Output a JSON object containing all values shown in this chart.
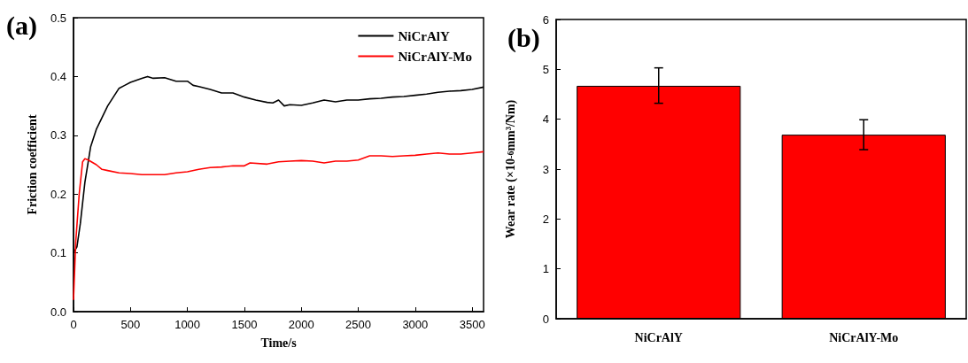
{
  "chart_data": [
    {
      "type": "line",
      "title": "(a)",
      "xlabel": "Time/s",
      "ylabel": "Friction coefficient",
      "xlim": [
        0,
        3600
      ],
      "xticks": [
        0,
        500,
        1000,
        1500,
        2000,
        2500,
        3000,
        3500
      ],
      "ylim": [
        0,
        0.5
      ],
      "yticks": [
        {
          "value": 0,
          "label": "0.0"
        },
        0.1,
        0.2,
        0.3,
        0.4,
        0.5
      ],
      "grid": false,
      "legend": "top right",
      "marker": "none",
      "line_style": "solid",
      "series": [
        {
          "name": "NiCrAlY",
          "color": "#000000",
          "x": [
            0,
            30,
            60,
            100,
            150,
            200,
            250,
            300,
            350,
            400,
            450,
            500,
            600,
            650,
            700,
            800,
            900,
            1000,
            1050,
            1100,
            1200,
            1300,
            1400,
            1500,
            1600,
            1700,
            1750,
            1800,
            1850,
            1900,
            2000,
            2100,
            2200,
            2300,
            2400,
            2500,
            2600,
            2700,
            2800,
            2900,
            3000,
            3100,
            3200,
            3300,
            3400,
            3500,
            3600
          ],
          "values": [
            0.1,
            0.11,
            0.15,
            0.22,
            0.28,
            0.31,
            0.33,
            0.35,
            0.365,
            0.38,
            0.385,
            0.39,
            0.397,
            0.4,
            0.397,
            0.398,
            0.392,
            0.392,
            0.385,
            0.383,
            0.378,
            0.372,
            0.372,
            0.365,
            0.36,
            0.356,
            0.355,
            0.36,
            0.35,
            0.352,
            0.351,
            0.355,
            0.36,
            0.357,
            0.36,
            0.36,
            0.362,
            0.363,
            0.365,
            0.366,
            0.368,
            0.37,
            0.373,
            0.375,
            0.376,
            0.378,
            0.382
          ]
        },
        {
          "name": "NiCrAlY-Mo",
          "color": "#ff0000",
          "x": [
            0,
            20,
            50,
            80,
            100,
            130,
            200,
            250,
            300,
            400,
            500,
            600,
            700,
            800,
            900,
            1000,
            1100,
            1200,
            1300,
            1400,
            1500,
            1550,
            1700,
            1800,
            1900,
            2000,
            2100,
            2200,
            2300,
            2400,
            2500,
            2600,
            2700,
            2800,
            2900,
            3000,
            3100,
            3200,
            3300,
            3400,
            3500,
            3600
          ],
          "values": [
            0.02,
            0.12,
            0.2,
            0.255,
            0.26,
            0.258,
            0.25,
            0.242,
            0.24,
            0.236,
            0.235,
            0.233,
            0.233,
            0.233,
            0.236,
            0.238,
            0.242,
            0.245,
            0.246,
            0.248,
            0.248,
            0.253,
            0.251,
            0.255,
            0.256,
            0.257,
            0.256,
            0.253,
            0.256,
            0.256,
            0.258,
            0.265,
            0.265,
            0.264,
            0.265,
            0.266,
            0.268,
            0.27,
            0.268,
            0.268,
            0.27,
            0.272
          ]
        }
      ]
    },
    {
      "type": "bar",
      "title": "(b)",
      "ylabel": "Wear rate (×10$^{-6}$mm³/Nm)",
      "categories": [
        "NiCrAlY",
        "NiCrAlY-Mo"
      ],
      "ylim": [
        0,
        6
      ],
      "yticks": [
        0,
        1,
        2,
        3,
        4,
        5,
        6
      ],
      "grid": false,
      "values": [
        4.67,
        3.69
      ],
      "color": "#ff0000",
      "errors": [
        [
          4.32,
          5.03
        ],
        [
          3.39,
          3.99
        ]
      ]
    }
  ]
}
